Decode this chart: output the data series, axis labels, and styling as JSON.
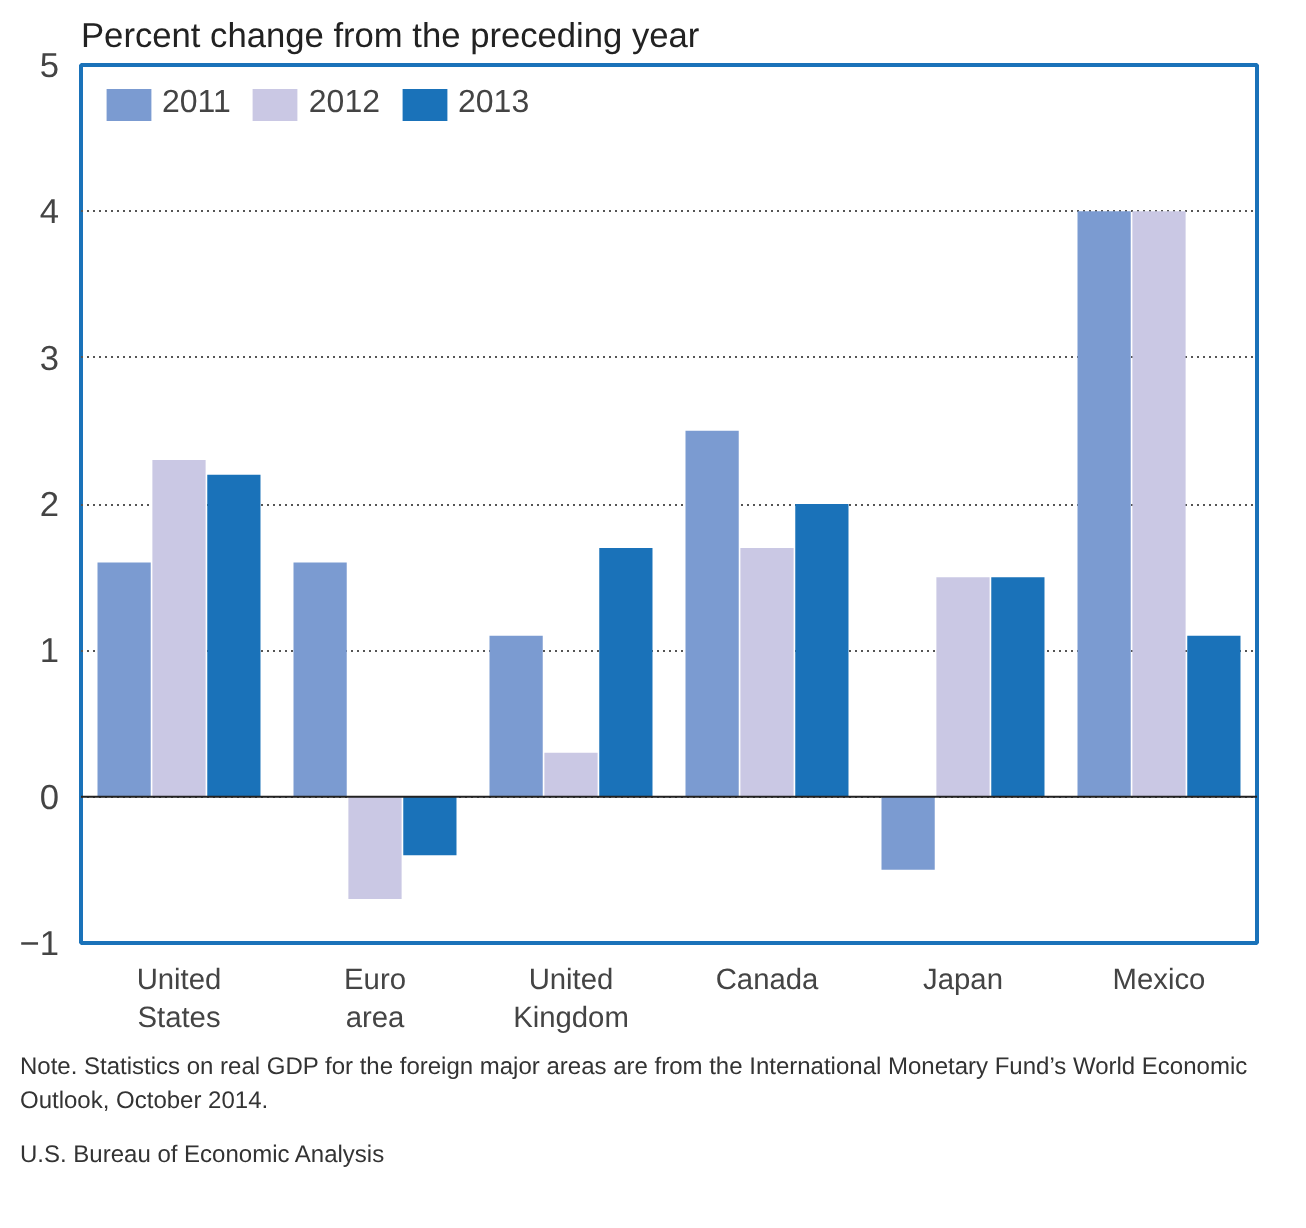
{
  "chart_data": {
    "type": "bar",
    "ylabel": "Percent change from the preceding year",
    "categories": [
      "United States",
      "Euro area",
      "United Kingdom",
      "Canada",
      "Japan",
      "Mexico"
    ],
    "series": [
      {
        "name": "2011",
        "color": "#7b9bd1",
        "values": [
          1.6,
          1.6,
          1.1,
          2.5,
          -0.5,
          4.0
        ]
      },
      {
        "name": "2012",
        "color": "#cac8e4",
        "values": [
          2.3,
          -0.7,
          0.3,
          1.7,
          1.5,
          4.0
        ]
      },
      {
        "name": "2013",
        "color": "#1a72b9",
        "values": [
          2.2,
          -0.4,
          1.7,
          2.0,
          1.5,
          1.1
        ]
      }
    ],
    "ylim": [
      -1,
      5
    ],
    "yticks": [
      {
        "value": -1,
        "label": "−1"
      },
      0,
      1,
      2,
      3,
      4,
      5
    ],
    "grid": "y",
    "legend": "top left",
    "annotations": [
      "Note. Statistics on real GDP for the foreign major areas are from the International Monetary Fund’s World Economic Outlook, October 2014.",
      "U.S. Bureau of Economic Analysis"
    ]
  }
}
